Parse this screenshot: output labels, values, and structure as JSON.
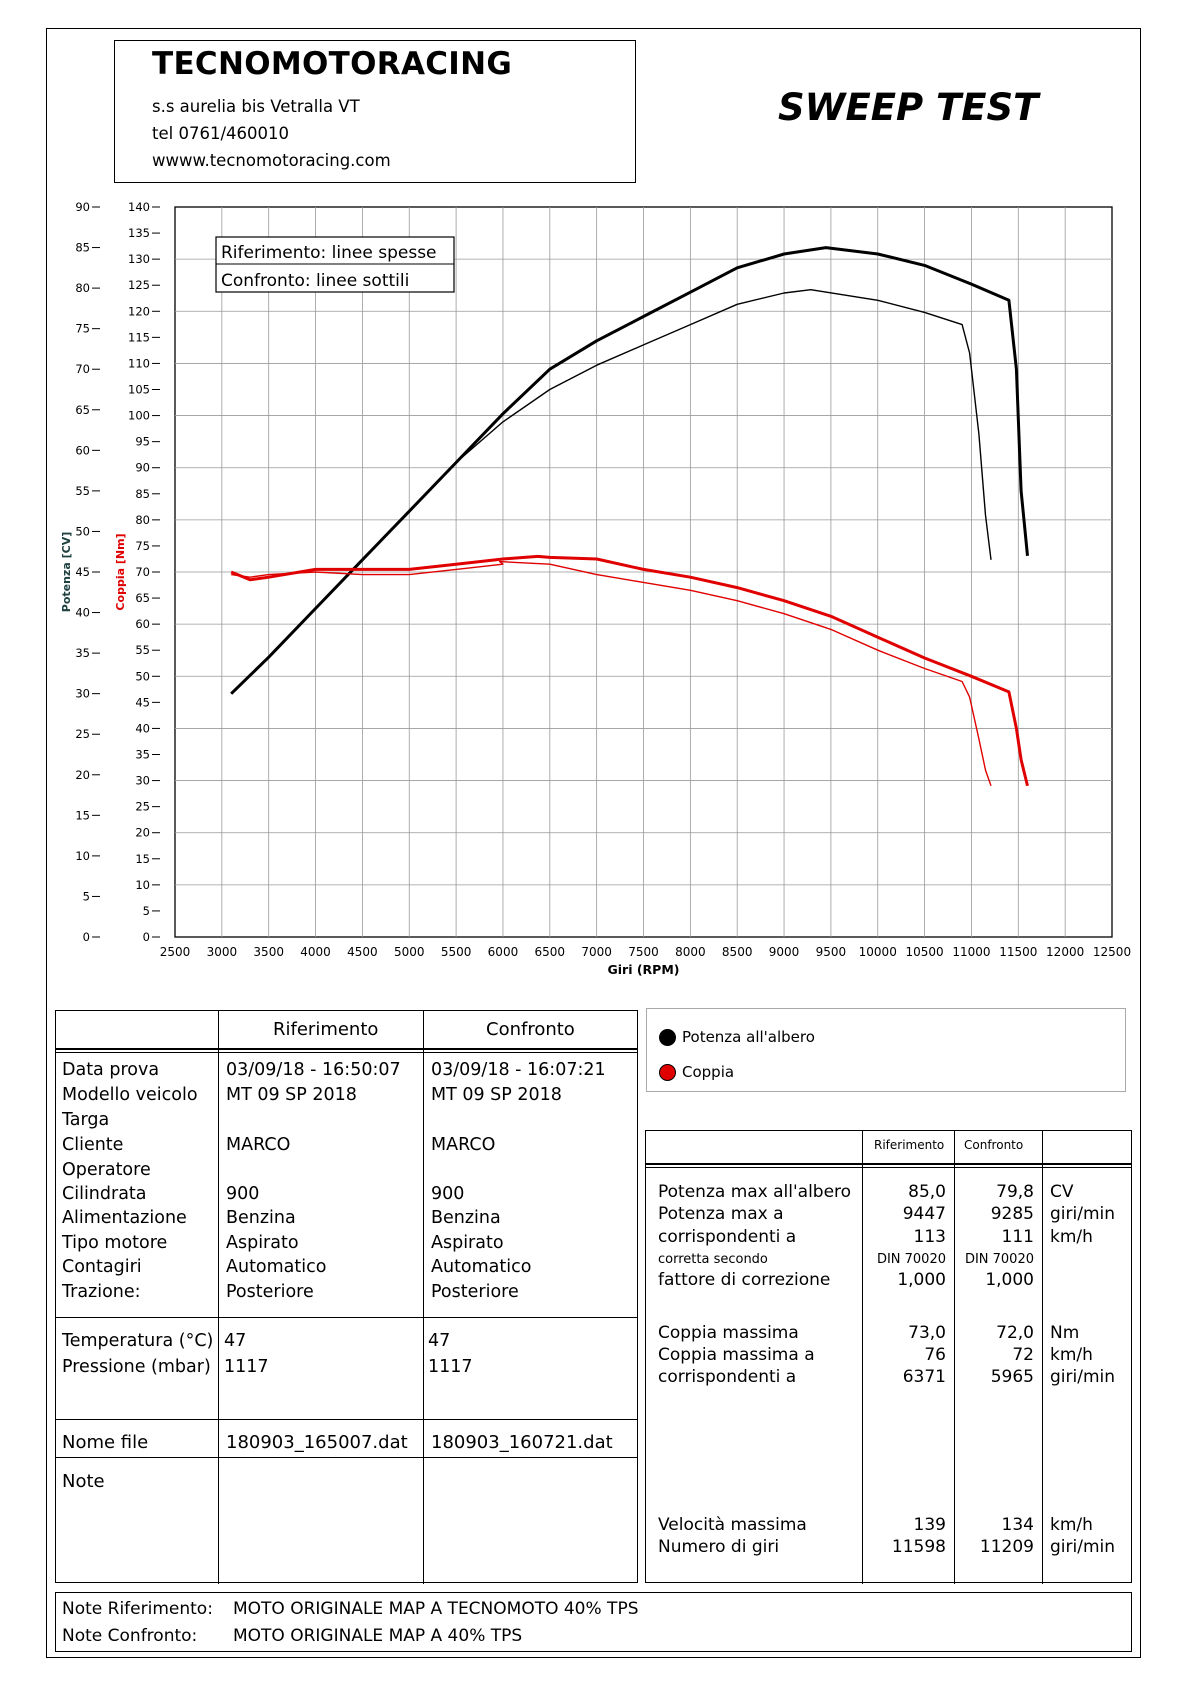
{
  "header": {
    "company": "TECNOMOTORACING",
    "address": "s.s aurelia bis  Vetralla  VT",
    "phone": "tel 0761/460010",
    "website": "wwww.tecnomotoracing.com",
    "test_title": "SWEEP TEST"
  },
  "chart_data": {
    "type": "line",
    "xlabel": "Giri (RPM)",
    "xlim": [
      2500,
      12500
    ],
    "x_ticks": [
      2500,
      3000,
      3500,
      4000,
      4500,
      5000,
      5500,
      6000,
      6500,
      7000,
      7500,
      8000,
      8500,
      9000,
      9500,
      10000,
      10500,
      11000,
      11500,
      12000,
      12500
    ],
    "y_power_label": "Potenza [CV]",
    "y_power_lim": [
      0,
      90
    ],
    "y_power_ticks": [
      0,
      5,
      10,
      15,
      20,
      25,
      30,
      35,
      40,
      45,
      50,
      55,
      60,
      65,
      70,
      75,
      80,
      85,
      90
    ],
    "y_torque_label": "Coppia [Nm]",
    "y_torque_lim": [
      0,
      140
    ],
    "y_torque_ticks": [
      0,
      5,
      10,
      15,
      20,
      25,
      30,
      35,
      40,
      45,
      50,
      55,
      60,
      65,
      70,
      75,
      80,
      85,
      90,
      95,
      100,
      105,
      110,
      115,
      120,
      125,
      130,
      135,
      140
    ],
    "annotation": [
      "Riferimento: linee spesse",
      "Confronto: linee sottili"
    ],
    "grid": true,
    "series": [
      {
        "name": "Potenza all'albero",
        "run": "Riferimento",
        "axis": "power",
        "color": "#000000",
        "style": "thick",
        "x": [
          3100,
          3500,
          4000,
          4500,
          5000,
          5500,
          6000,
          6500,
          7000,
          7500,
          8000,
          8500,
          9000,
          9447,
          10000,
          10500,
          11000,
          11400,
          11480,
          11530,
          11598
        ],
        "y": [
          30.0,
          34.5,
          40.5,
          46.5,
          52.5,
          58.5,
          64.5,
          70.0,
          73.5,
          76.5,
          79.5,
          82.5,
          84.2,
          85.0,
          84.2,
          82.8,
          80.5,
          78.5,
          70.0,
          55.0,
          47.0
        ]
      },
      {
        "name": "Potenza all'albero",
        "run": "Confronto",
        "axis": "power",
        "color": "#000000",
        "style": "thin",
        "x": [
          3100,
          3500,
          4000,
          4500,
          5000,
          5500,
          6000,
          6500,
          7000,
          7500,
          8000,
          8500,
          9000,
          9285,
          10000,
          10500,
          10900,
          10980,
          11080,
          11150,
          11209
        ],
        "y": [
          30.0,
          34.5,
          40.5,
          46.5,
          52.5,
          58.5,
          63.5,
          67.5,
          70.5,
          73.0,
          75.5,
          78.0,
          79.4,
          79.8,
          78.5,
          77.0,
          75.5,
          72.0,
          62.0,
          52.0,
          46.5
        ]
      },
      {
        "name": "Coppia",
        "run": "Riferimento",
        "axis": "torque",
        "color": "#e00000",
        "style": "thick",
        "x": [
          3100,
          3300,
          3500,
          4000,
          4500,
          5000,
          5500,
          6000,
          6371,
          6500,
          7000,
          7500,
          8000,
          8500,
          9000,
          9500,
          10000,
          10500,
          11000,
          11400,
          11480,
          11530,
          11598
        ],
        "y": [
          70.0,
          68.5,
          69.0,
          70.5,
          70.5,
          70.5,
          71.5,
          72.5,
          73.0,
          72.8,
          72.5,
          70.5,
          69.0,
          67.0,
          64.5,
          61.5,
          57.5,
          53.5,
          50.0,
          47.0,
          40.0,
          34.0,
          29.0
        ]
      },
      {
        "name": "Coppia",
        "run": "Confronto",
        "axis": "torque",
        "color": "#e00000",
        "style": "thin",
        "x": [
          3100,
          3300,
          3500,
          4000,
          4500,
          5000,
          5500,
          6000,
          5965,
          6500,
          7000,
          7500,
          8000,
          8500,
          9000,
          9500,
          10000,
          10500,
          10900,
          10980,
          11080,
          11150,
          11209
        ],
        "y": [
          69.5,
          69.0,
          69.5,
          70.0,
          69.5,
          69.5,
          70.5,
          71.5,
          72.0,
          71.5,
          69.5,
          68.0,
          66.5,
          64.5,
          62.0,
          59.0,
          55.0,
          51.5,
          49.0,
          46.0,
          38.0,
          32.0,
          29.0
        ]
      }
    ]
  },
  "legend": {
    "power": "Potenza all'albero",
    "torque": "Coppia",
    "power_color": "#000000",
    "torque_color": "#e00000"
  },
  "info": {
    "col_ref": "Riferimento",
    "col_cmp": "Confronto",
    "rows1": [
      {
        "label": "Data prova",
        "ref": "03/09/18 - 16:50:07",
        "cmp": "03/09/18 - 16:07:21"
      },
      {
        "label": "Modello veicolo",
        "ref": "MT 09 SP 2018",
        "cmp": "MT 09 SP 2018"
      },
      {
        "label": "Targa",
        "ref": "",
        "cmp": ""
      },
      {
        "label": "Cliente",
        "ref": "MARCO",
        "cmp": "MARCO"
      },
      {
        "label": "Operatore",
        "ref": "",
        "cmp": ""
      },
      {
        "label": "Cilindrata",
        "ref": "900",
        "cmp": "900"
      },
      {
        "label": "Alimentazione",
        "ref": "Benzina",
        "cmp": "Benzina"
      },
      {
        "label": "Tipo motore",
        "ref": "Aspirato",
        "cmp": "Aspirato"
      },
      {
        "label": "Contagiri",
        "ref": "Automatico",
        "cmp": "Automatico"
      },
      {
        "label": "Trazione:",
        "ref": "Posteriore",
        "cmp": "Posteriore"
      }
    ],
    "rows2": [
      {
        "label": "Temperatura (°C)",
        "ref": "47",
        "cmp": "47"
      },
      {
        "label": "Pressione (mbar)",
        "ref": "1117",
        "cmp": "1117"
      }
    ],
    "file_label": "Nome file",
    "file_ref": "180903_165007.dat",
    "file_cmp": "180903_160721.dat",
    "note_label": "Note"
  },
  "results": {
    "col_ref": "Riferimento",
    "col_cmp": "Confronto",
    "rows": [
      {
        "label": "Potenza max all'albero",
        "ref": "85,0",
        "cmp": "79,8",
        "unit": "CV"
      },
      {
        "label": "Potenza max a",
        "ref": "9447",
        "cmp": "9285",
        "unit": "giri/min"
      },
      {
        "label": "corrispondenti a",
        "ref": "113",
        "cmp": "111",
        "unit": "km/h"
      },
      {
        "label": "corretta secondo",
        "ref": "DIN 70020",
        "cmp": "DIN 70020",
        "unit": ""
      },
      {
        "label": "fattore di correzione",
        "ref": "1,000",
        "cmp": "1,000",
        "unit": ""
      },
      {
        "label": "Coppia massima",
        "ref": "73,0",
        "cmp": "72,0",
        "unit": "Nm"
      },
      {
        "label": "Coppia massima a",
        "ref": "76",
        "cmp": "72",
        "unit": "km/h"
      },
      {
        "label": "corrispondenti a",
        "ref": "6371",
        "cmp": "5965",
        "unit": "giri/min"
      },
      {
        "label": "Velocità massima",
        "ref": "139",
        "cmp": "134",
        "unit": "km/h"
      },
      {
        "label": "Numero di giri",
        "ref": "11598",
        "cmp": "11209",
        "unit": "giri/min"
      }
    ]
  },
  "notes": {
    "ref_label": "Note Riferimento:",
    "ref_text": "MOTO ORIGINALE MAP A TECNOMOTO   40% TPS",
    "cmp_label": "Note Confronto:",
    "cmp_text": "MOTO ORIGINALE MAP A 40% TPS"
  }
}
